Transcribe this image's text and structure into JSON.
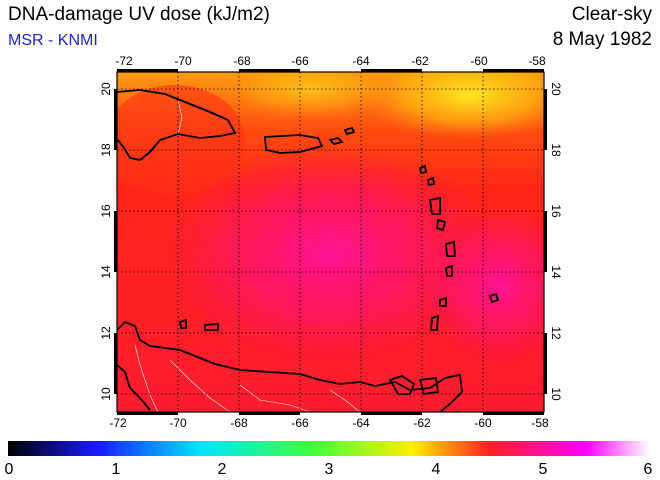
{
  "header": {
    "title": "DNA-damage UV dose (kJ/m2)",
    "source": "MSR - KNMI",
    "sky": "Clear-sky",
    "date": "8 May 1982"
  },
  "map": {
    "lon_range": [
      -72,
      -58
    ],
    "lat_range": [
      9.5,
      20.5
    ],
    "lon_ticks": [
      "-72",
      "-70",
      "-68",
      "-66",
      "-64",
      "-62",
      "-60",
      "-58"
    ],
    "lat_ticks": [
      "10",
      "12",
      "14",
      "16",
      "18",
      "20"
    ],
    "gridlines": true
  },
  "colorbar": {
    "labels": [
      "0",
      "1",
      "2",
      "3",
      "4",
      "5",
      "6"
    ],
    "range": [
      0,
      6
    ],
    "stops": [
      "#000000",
      "#1a1aff",
      "#00e5ff",
      "#3cff3c",
      "#ffee00",
      "#ff2020",
      "#ff00ff",
      "#ffffff"
    ]
  }
}
